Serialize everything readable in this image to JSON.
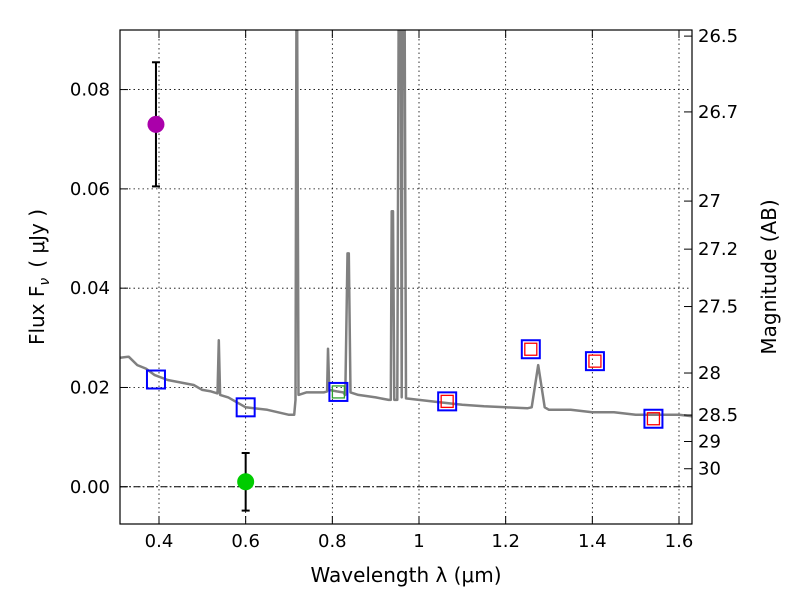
{
  "chart_data": {
    "type": "scatter",
    "xlabel": "Wavelength  λ (μm)",
    "ylabel": "Flux  F",
    "ylabel_sub": "ν",
    "ylabel_unit": "( μJy )",
    "y2label": "Magnitude (AB)",
    "xlim": [
      0.31,
      1.63
    ],
    "ylim": [
      -0.0075,
      0.092
    ],
    "grid": true,
    "x_ticks": [
      {
        "value": 0.4,
        "label": "0.4"
      },
      {
        "value": 0.6,
        "label": "0.6"
      },
      {
        "value": 0.8,
        "label": "0.8"
      },
      {
        "value": 1.0,
        "label": "1"
      },
      {
        "value": 1.2,
        "label": "1.2"
      },
      {
        "value": 1.4,
        "label": "1.4"
      },
      {
        "value": 1.6,
        "label": "1.6"
      }
    ],
    "y_ticks": [
      {
        "value": 0.0,
        "label": "0.00"
      },
      {
        "value": 0.02,
        "label": "0.02"
      },
      {
        "value": 0.04,
        "label": "0.04"
      },
      {
        "value": 0.06,
        "label": "0.06"
      },
      {
        "value": 0.08,
        "label": "0.08"
      }
    ],
    "mag_ticks": [
      {
        "value": 0.09077,
        "label": "26.5"
      },
      {
        "value": 0.0755,
        "label": "26.7"
      },
      {
        "value": 0.05754,
        "label": "27"
      },
      {
        "value": 0.04786,
        "label": "27.2"
      },
      {
        "value": 0.0363,
        "label": "27.5"
      },
      {
        "value": 0.02291,
        "label": "28"
      },
      {
        "value": 0.01445,
        "label": "28.5"
      },
      {
        "value": 0.00912,
        "label": "29"
      },
      {
        "value": 0.00363,
        "label": "30"
      }
    ],
    "zero_line": 0.0,
    "series": [
      {
        "name": "model-spectrum",
        "kind": "line",
        "color": "#808080",
        "points": [
          [
            0.31,
            0.026
          ],
          [
            0.33,
            0.0262
          ],
          [
            0.35,
            0.0245
          ],
          [
            0.37,
            0.0238
          ],
          [
            0.39,
            0.0225
          ],
          [
            0.42,
            0.0215
          ],
          [
            0.45,
            0.021
          ],
          [
            0.48,
            0.0205
          ],
          [
            0.5,
            0.0195
          ],
          [
            0.52,
            0.0192
          ],
          [
            0.535,
            0.0188
          ],
          [
            0.538,
            0.0295
          ],
          [
            0.541,
            0.0185
          ],
          [
            0.56,
            0.018
          ],
          [
            0.6,
            0.016
          ],
          [
            0.65,
            0.0155
          ],
          [
            0.7,
            0.0145
          ],
          [
            0.712,
            0.0145
          ],
          [
            0.715,
            0.0175
          ],
          [
            0.717,
            0.092
          ],
          [
            0.719,
            0.092
          ],
          [
            0.722,
            0.0185
          ],
          [
            0.74,
            0.019
          ],
          [
            0.78,
            0.019
          ],
          [
            0.788,
            0.0192
          ],
          [
            0.79,
            0.0278
          ],
          [
            0.793,
            0.0195
          ],
          [
            0.81,
            0.0192
          ],
          [
            0.825,
            0.019
          ],
          [
            0.83,
            0.0185
          ],
          [
            0.835,
            0.047
          ],
          [
            0.838,
            0.047
          ],
          [
            0.842,
            0.019
          ],
          [
            0.86,
            0.0185
          ],
          [
            0.9,
            0.018
          ],
          [
            0.93,
            0.0175
          ],
          [
            0.935,
            0.0175
          ],
          [
            0.937,
            0.0555
          ],
          [
            0.94,
            0.0555
          ],
          [
            0.943,
            0.0175
          ],
          [
            0.95,
            0.0175
          ],
          [
            0.953,
            0.092
          ],
          [
            0.958,
            0.092
          ],
          [
            0.96,
            0.018
          ],
          [
            0.962,
            0.092
          ],
          [
            0.967,
            0.092
          ],
          [
            0.97,
            0.0178
          ],
          [
            1.0,
            0.0175
          ],
          [
            1.05,
            0.017
          ],
          [
            1.1,
            0.0165
          ],
          [
            1.15,
            0.0162
          ],
          [
            1.2,
            0.016
          ],
          [
            1.25,
            0.0158
          ],
          [
            1.26,
            0.016
          ],
          [
            1.275,
            0.0245
          ],
          [
            1.29,
            0.016
          ],
          [
            1.3,
            0.0155
          ],
          [
            1.35,
            0.0155
          ],
          [
            1.4,
            0.015
          ],
          [
            1.45,
            0.015
          ],
          [
            1.5,
            0.0145
          ],
          [
            1.55,
            0.0145
          ],
          [
            1.6,
            0.0145
          ],
          [
            1.63,
            0.0142
          ]
        ]
      },
      {
        "name": "photometry-model-squares",
        "kind": "marker",
        "marker": "square",
        "color": "#0000ff",
        "points": [
          [
            0.393,
            0.0216
          ],
          [
            0.6,
            0.016
          ],
          [
            0.814,
            0.0191
          ],
          [
            1.065,
            0.0172
          ],
          [
            1.258,
            0.0277
          ],
          [
            1.406,
            0.0253
          ],
          [
            1.541,
            0.0137
          ]
        ]
      },
      {
        "name": "photometry-inner-squares",
        "kind": "marker",
        "marker": "square-small",
        "color": "#ff0000",
        "points": [
          [
            1.065,
            0.0172
          ],
          [
            1.258,
            0.0277
          ],
          [
            1.406,
            0.0253
          ],
          [
            1.541,
            0.0137
          ]
        ]
      },
      {
        "name": "photometry-green-marker",
        "kind": "marker",
        "marker": "square-small",
        "color": "#2ca02c",
        "points": [
          [
            0.814,
            0.0191
          ]
        ]
      },
      {
        "name": "magenta-detection",
        "kind": "errorbar",
        "color": "#aa00aa",
        "points": [
          {
            "x": 0.393,
            "y": 0.073,
            "ylow": 0.0605,
            "yhigh": 0.0855
          }
        ]
      },
      {
        "name": "green-detection",
        "kind": "errorbar",
        "color": "#00cc00",
        "points": [
          {
            "x": 0.6,
            "y": 0.001,
            "ylow": -0.0048,
            "yhigh": 0.0068
          }
        ]
      }
    ]
  }
}
